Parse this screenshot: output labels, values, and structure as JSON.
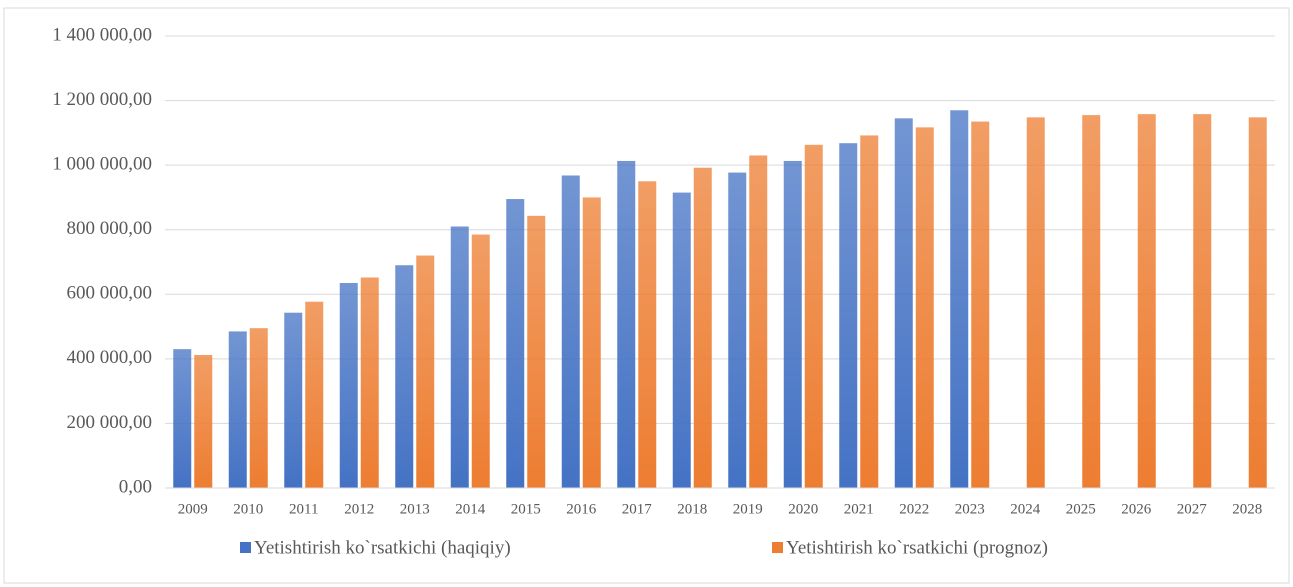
{
  "chart_data": {
    "type": "bar",
    "categories": [
      "2009",
      "2010",
      "2011",
      "2012",
      "2013",
      "2014",
      "2015",
      "2016",
      "2017",
      "2018",
      "2019",
      "2020",
      "2021",
      "2022",
      "2023",
      "2024",
      "2025",
      "2026",
      "2027",
      "2028"
    ],
    "series": [
      {
        "name": "Yetishtirish ko`rsatkichi (haqiqiy)",
        "color": "#4472c4",
        "values": [
          430000,
          485000,
          543000,
          635000,
          690000,
          810000,
          895000,
          968000,
          1013000,
          915000,
          977000,
          1013000,
          1068000,
          1145000,
          1170000,
          null,
          null,
          null,
          null,
          null
        ]
      },
      {
        "name": "Yetishtirish ko`rsatkichi (prognoz)",
        "color": "#ed7d31",
        "values": [
          412000,
          495000,
          577000,
          652000,
          720000,
          785000,
          843000,
          900000,
          950000,
          992000,
          1030000,
          1063000,
          1092000,
          1117000,
          1135000,
          1148000,
          1155000,
          1158000,
          1158000,
          1148000
        ]
      }
    ],
    "ylim": [
      0,
      1400000
    ],
    "yticks": [
      {
        "value": 0,
        "label": "0,00"
      },
      {
        "value": 200000,
        "label": "200 000,00"
      },
      {
        "value": 400000,
        "label": "400 000,00"
      },
      {
        "value": 600000,
        "label": "600 000,00"
      },
      {
        "value": 800000,
        "label": "800 000,00"
      },
      {
        "value": 1000000,
        "label": "1 000 000,00"
      },
      {
        "value": 1200000,
        "label": "1 200 000,00"
      },
      {
        "value": 1400000,
        "label": "1 400 000,00"
      }
    ],
    "grid": true,
    "legend": "bottom"
  }
}
